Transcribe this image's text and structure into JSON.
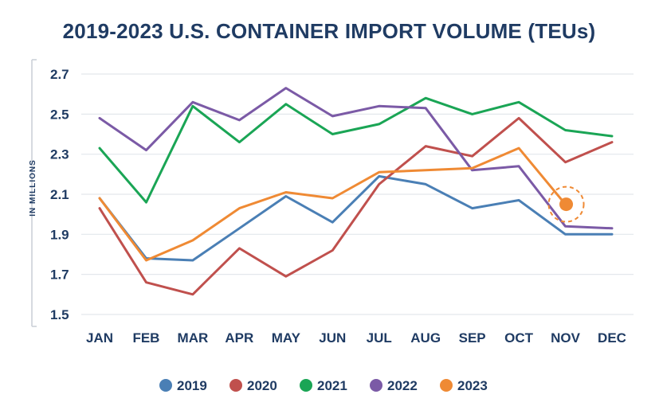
{
  "chart_data": {
    "type": "line",
    "title": "2019-2023 U.S. CONTAINER IMPORT VOLUME (TEUs)",
    "ylabel": "IN MILLIONS",
    "xlabel": "",
    "categories": [
      "JAN",
      "FEB",
      "MAR",
      "APR",
      "MAY",
      "JUN",
      "JUL",
      "AUG",
      "SEP",
      "OCT",
      "NOV",
      "DEC"
    ],
    "yticks": [
      "2.7",
      "2.5",
      "2.3",
      "2.1",
      "1.9",
      "1.7",
      "1.5"
    ],
    "ylim": [
      1.48,
      2.72
    ],
    "grid": true,
    "legend_position": "bottom",
    "series": [
      {
        "name": "2019",
        "color": "#4a7fb5",
        "values": [
          2.08,
          1.78,
          1.77,
          1.93,
          2.09,
          1.96,
          2.19,
          2.15,
          2.03,
          2.07,
          1.9,
          1.9
        ]
      },
      {
        "name": "2020",
        "color": "#c0504d",
        "values": [
          2.03,
          1.66,
          1.6,
          1.83,
          1.69,
          1.82,
          2.15,
          2.34,
          2.29,
          2.48,
          2.26,
          2.36
        ]
      },
      {
        "name": "2021",
        "color": "#1aa555",
        "values": [
          2.33,
          2.06,
          2.54,
          2.36,
          2.55,
          2.4,
          2.45,
          2.58,
          2.5,
          2.56,
          2.42,
          2.39
        ]
      },
      {
        "name": "2022",
        "color": "#7b5aa6",
        "values": [
          2.48,
          2.32,
          2.56,
          2.47,
          2.63,
          2.49,
          2.54,
          2.53,
          2.22,
          2.24,
          1.94,
          1.93
        ]
      },
      {
        "name": "2023",
        "color": "#ef8a34",
        "values": [
          2.08,
          1.77,
          1.87,
          2.03,
          2.11,
          2.08,
          2.21,
          2.22,
          2.23,
          2.33,
          2.05,
          null
        ]
      }
    ],
    "highlight": {
      "series": "2023",
      "category": "NOV"
    }
  }
}
